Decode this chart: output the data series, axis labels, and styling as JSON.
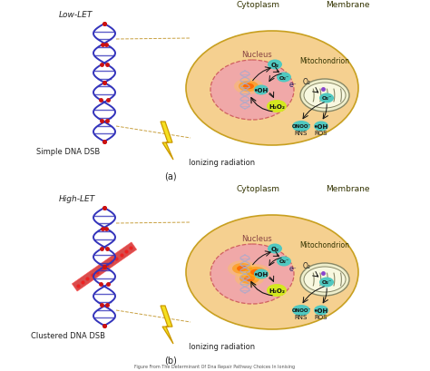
{
  "background_color": "#ffffff",
  "panel_a_label": "(a)",
  "panel_b_label": "(b)",
  "cytoplasm_color": "#f5d090",
  "nucleus_color": "#f0a8a8",
  "cell_outline_color": "#c8a020",
  "nucleus_outline_color": "#d06060",
  "mito_color": "#eeeecc",
  "mito_outline": "#888866",
  "lightning_color": "#f5e020",
  "lightning_outline": "#cc9900",
  "label_cytoplasm": "Cytoplasm",
  "label_nucleus": "Nucleus",
  "label_membrane": "Membrane",
  "label_mitochondrion": "Mitochondrion",
  "label_ionizing": "Ionizing radiation",
  "label_low_let": "Low-LET",
  "label_simple_dsb": "Simple DNA DSB",
  "label_high_let": "High-LET",
  "label_clustered_dsb": "Clustered DNA DSB",
  "label_o2": "O₂",
  "label_o2m": "O₂⁻",
  "label_oh": "•OH",
  "label_h2o2": "H₂O₂",
  "label_e": "e⁻",
  "label_onoo": "ONOO⁻",
  "label_rns": "RNS",
  "label_ros": "ROS",
  "h2o2_color": "#d4e820",
  "bubble_color": "#50c8c0",
  "dna_blue": "#3333bb",
  "dna_red": "#cc1111",
  "hot_inner": "#ff6600",
  "hot_mid": "#ff9900",
  "hot_outer": "#ffcc44"
}
